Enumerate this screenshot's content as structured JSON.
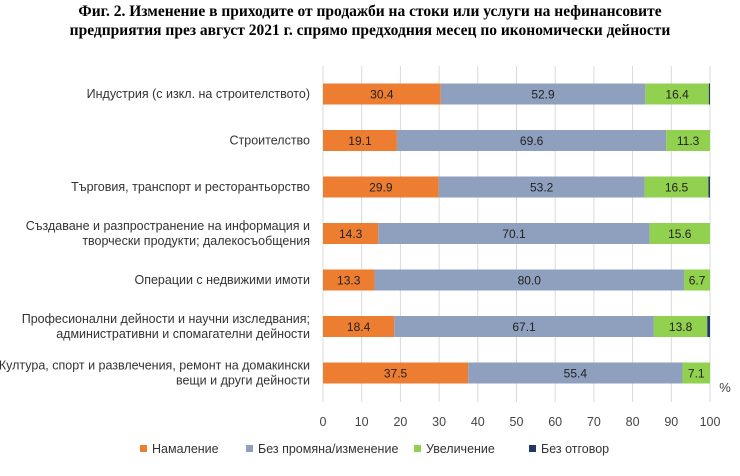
{
  "chart_data": {
    "type": "bar",
    "orientation": "horizontal",
    "stacked": true,
    "title": [
      "Фиг. 2. Изменение в приходите от продажби на стоки или услуги на нефинансовите",
      "предприятия през август 2021 г. спрямо предходния месец по икономически дейности"
    ],
    "categories": [
      [
        "Индустрия (с изкл. на строителството)"
      ],
      [
        "Строителство"
      ],
      [
        "Търговия, транспорт и ресторантьорство"
      ],
      [
        "Създаване и разпространение на информация и",
        "творчески продукти; далекосъобщения"
      ],
      [
        "Операции с недвижими имоти"
      ],
      [
        "Професионални дейности и научни изследвания;",
        "административни и спомагателни дейности"
      ],
      [
        "Култура, спорт и развлечения, ремонт на домакински",
        "вещи и други дейности"
      ]
    ],
    "series": [
      {
        "name": "Намаление",
        "color": "#ED7D31",
        "values": [
          30.4,
          19.1,
          29.9,
          14.3,
          13.3,
          18.4,
          37.5
        ]
      },
      {
        "name": "Без промяна/изменение",
        "color": "#8EA0BE",
        "values": [
          52.9,
          69.6,
          53.2,
          70.1,
          80.0,
          67.1,
          55.4
        ]
      },
      {
        "name": "Увеличение",
        "color": "#92D050",
        "values": [
          16.4,
          11.3,
          16.5,
          15.6,
          6.7,
          13.8,
          7.1
        ]
      },
      {
        "name": "Без отговор",
        "color": "#1F3864",
        "values": [
          0.3,
          0.0,
          0.4,
          0.0,
          0.0,
          0.7,
          0.0
        ]
      }
    ],
    "show_labels_for": [
      "Намаление",
      "Без промяна/изменение",
      "Увеличение"
    ],
    "xlim": [
      0,
      100
    ],
    "xticks": [
      "0",
      "10",
      "20",
      "30",
      "40",
      "50",
      "60",
      "70",
      "80",
      "90",
      "100"
    ],
    "unit_label": "%",
    "grid": true,
    "legend_position": "bottom"
  }
}
